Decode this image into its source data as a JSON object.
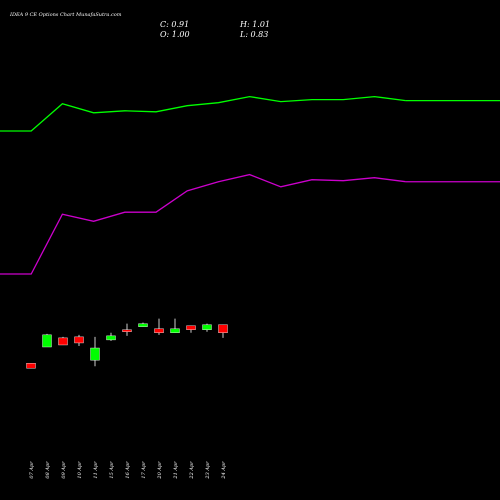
{
  "header": {
    "title": "IDEA 9 CE Options  Chart MunafaSutra.com",
    "close_label": "C: 0.91",
    "high_label": "H: 1.01",
    "open_label": "O: 1.00",
    "low_label": "L: 0.83"
  },
  "colors": {
    "background": "#000000",
    "up": "#00ff00",
    "down": "#ff0000",
    "upper_line": "#00ff00",
    "lower_line": "#cc00cc",
    "wick": "#ffffff",
    "text": "#ffffff"
  },
  "chart_data": {
    "type": "candlestick",
    "title": "IDEA 9 CE Options  Chart MunafaSutra.com",
    "categories": [
      "07 Apr",
      "08 Apr",
      "09 Apr",
      "10 Apr",
      "11 Apr",
      "15 Apr",
      "16 Apr",
      "17 Apr",
      "20 Apr",
      "21 Apr",
      "22 Apr",
      "23 Apr",
      "24 Apr"
    ],
    "candles": [
      {
        "open": 0.56,
        "high": 0.56,
        "low": 0.51,
        "close": 0.51
      },
      {
        "open": 0.72,
        "high": 0.85,
        "low": 0.72,
        "close": 0.84
      },
      {
        "open": 0.81,
        "high": 0.82,
        "low": 0.74,
        "close": 0.74
      },
      {
        "open": 0.82,
        "high": 0.84,
        "low": 0.73,
        "close": 0.76
      },
      {
        "open": 0.59,
        "high": 0.82,
        "low": 0.53,
        "close": 0.71
      },
      {
        "open": 0.79,
        "high": 0.86,
        "low": 0.78,
        "close": 0.83
      },
      {
        "open": 0.89,
        "high": 0.95,
        "low": 0.83,
        "close": 0.88
      },
      {
        "open": 0.92,
        "high": 0.96,
        "low": 0.92,
        "close": 0.95
      },
      {
        "open": 0.9,
        "high": 1.0,
        "low": 0.84,
        "close": 0.86
      },
      {
        "open": 0.86,
        "high": 1.0,
        "low": 0.86,
        "close": 0.9
      },
      {
        "open": 0.93,
        "high": 0.93,
        "low": 0.86,
        "close": 0.89
      },
      {
        "open": 0.89,
        "high": 0.95,
        "low": 0.87,
        "close": 0.94
      },
      {
        "open": 0.94,
        "high": 0.94,
        "low": 0.81,
        "close": 0.86
      }
    ],
    "upper_band": [
      {
        "x": "02 Apr",
        "y": 2.85
      },
      {
        "x": "03 Apr",
        "y": 2.85
      },
      {
        "x": "07 Apr",
        "y": 3.12
      },
      {
        "x": "08 Apr",
        "y": 3.03
      },
      {
        "x": "09 Apr",
        "y": 3.05
      },
      {
        "x": "10 Apr",
        "y": 3.04
      },
      {
        "x": "11 Apr",
        "y": 3.1
      },
      {
        "x": "15 Apr",
        "y": 3.13
      },
      {
        "x": "16 Apr",
        "y": 3.19
      },
      {
        "x": "17 Apr",
        "y": 3.14
      },
      {
        "x": "20 Apr",
        "y": 3.16
      },
      {
        "x": "21 Apr",
        "y": 3.16
      },
      {
        "x": "22 Apr",
        "y": 3.19
      },
      {
        "x": "23 Apr",
        "y": 3.15
      }
    ],
    "lower_band": [
      {
        "x": "02 Apr",
        "y": 1.44
      },
      {
        "x": "03 Apr",
        "y": 1.44
      },
      {
        "x": "07 Apr",
        "y": 2.03
      },
      {
        "x": "08 Apr",
        "y": 1.96
      },
      {
        "x": "09 Apr",
        "y": 2.05
      },
      {
        "x": "10 Apr",
        "y": 2.05
      },
      {
        "x": "11 Apr",
        "y": 2.26
      },
      {
        "x": "15 Apr",
        "y": 2.35
      },
      {
        "x": "16 Apr",
        "y": 2.42
      },
      {
        "x": "17 Apr",
        "y": 2.3
      },
      {
        "x": "20 Apr",
        "y": 2.37
      },
      {
        "x": "21 Apr",
        "y": 2.36
      },
      {
        "x": "22 Apr",
        "y": 2.39
      },
      {
        "x": "23 Apr",
        "y": 2.35
      }
    ],
    "y_range": [
      0.0,
      3.6
    ],
    "grid": false,
    "legend": "none"
  }
}
